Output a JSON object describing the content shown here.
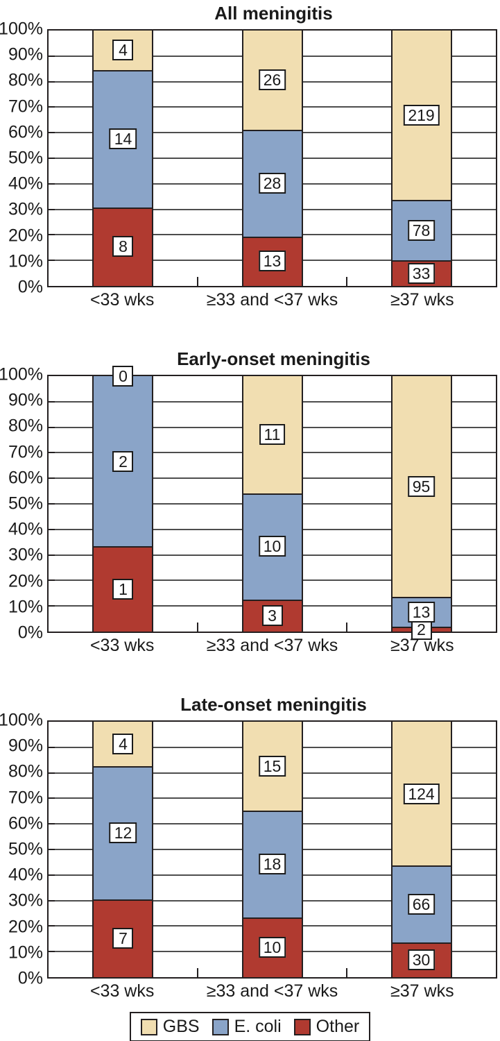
{
  "page": {
    "background": "#FFFFFF"
  },
  "colors": {
    "gbs": "#F1DEB1",
    "ecoli": "#8AA4C8",
    "other": "#B03A30",
    "axis": "#231F20",
    "grid": "#4D4D4D",
    "text": "#1A1A1A",
    "label_box_bg": "#FFFFFF"
  },
  "y_axis": {
    "tick_labels": [
      "100%",
      "90%",
      "80%",
      "70%",
      "60%",
      "50%",
      "40%",
      "30%",
      "20%",
      "10%",
      "0%"
    ]
  },
  "x_axis": {
    "categories": [
      "<33 wks",
      "≥33 and <37 wks",
      "≥37 wks"
    ]
  },
  "legend": {
    "items": [
      {
        "label": "GBS",
        "color_key": "gbs"
      },
      {
        "label": "E. coli",
        "color_key": "ecoli"
      },
      {
        "label": "Other",
        "color_key": "other"
      }
    ]
  },
  "stack_order_bottom_to_top": [
    "Other",
    "E. coli",
    "GBS"
  ],
  "chart_data": [
    {
      "type": "bar",
      "variant": "100%-stacked-column",
      "title": "All meningitis",
      "categories": [
        "<33 wks",
        "≥33 and <37 wks",
        "≥37 wks"
      ],
      "series": [
        {
          "name": "GBS",
          "color_key": "gbs",
          "values": [
            4,
            26,
            219
          ]
        },
        {
          "name": "E. coli",
          "color_key": "ecoli",
          "values": [
            14,
            28,
            78
          ]
        },
        {
          "name": "Other",
          "color_key": "other",
          "values": [
            8,
            13,
            33
          ]
        }
      ],
      "ylim": [
        "0%",
        "100%"
      ],
      "grid": true,
      "value_labels": "boxed counts centered in each segment"
    },
    {
      "type": "bar",
      "variant": "100%-stacked-column",
      "title": "Early-onset meningitis",
      "categories": [
        "<33 wks",
        "≥33 and <37 wks",
        "≥37 wks"
      ],
      "series": [
        {
          "name": "GBS",
          "color_key": "gbs",
          "values": [
            0,
            11,
            95
          ]
        },
        {
          "name": "E. coli",
          "color_key": "ecoli",
          "values": [
            2,
            10,
            13
          ]
        },
        {
          "name": "Other",
          "color_key": "other",
          "values": [
            1,
            3,
            2
          ]
        }
      ],
      "ylim": [
        "0%",
        "100%"
      ],
      "grid": true,
      "value_labels": "boxed counts centered in each segment"
    },
    {
      "type": "bar",
      "variant": "100%-stacked-column",
      "title": "Late-onset meningitis",
      "categories": [
        "<33 wks",
        "≥33 and <37 wks",
        "≥37 wks"
      ],
      "series": [
        {
          "name": "GBS",
          "color_key": "gbs",
          "values": [
            4,
            15,
            124
          ]
        },
        {
          "name": "E. coli",
          "color_key": "ecoli",
          "values": [
            12,
            18,
            66
          ]
        },
        {
          "name": "Other",
          "color_key": "other",
          "values": [
            7,
            10,
            30
          ]
        }
      ],
      "ylim": [
        "0%",
        "100%"
      ],
      "grid": true,
      "value_labels": "boxed counts centered in each segment"
    }
  ]
}
